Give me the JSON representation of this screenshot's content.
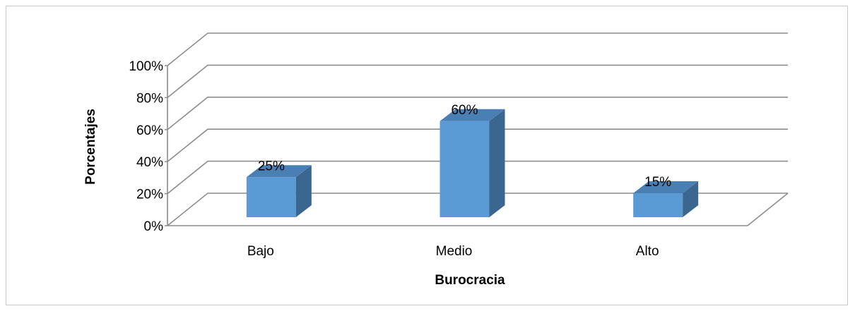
{
  "chart_data": {
    "type": "bar",
    "style": "3d-column",
    "categories": [
      "Bajo",
      "Medio",
      "Alto"
    ],
    "values": [
      25,
      60,
      15
    ],
    "data_labels": [
      "25%",
      "60%",
      "15%"
    ],
    "xlabel": "Burocracia",
    "ylabel": "Porcentajes",
    "ylim": [
      0,
      100
    ],
    "yticks": [
      "0%",
      "20%",
      "40%",
      "60%",
      "80%",
      "100%"
    ],
    "grid": true,
    "legend": "none",
    "colors": {
      "bar_front": "#5b9bd5",
      "bar_top": "#4a7fb3",
      "bar_side": "#3a6690",
      "grid": "#8c8c8c"
    }
  }
}
